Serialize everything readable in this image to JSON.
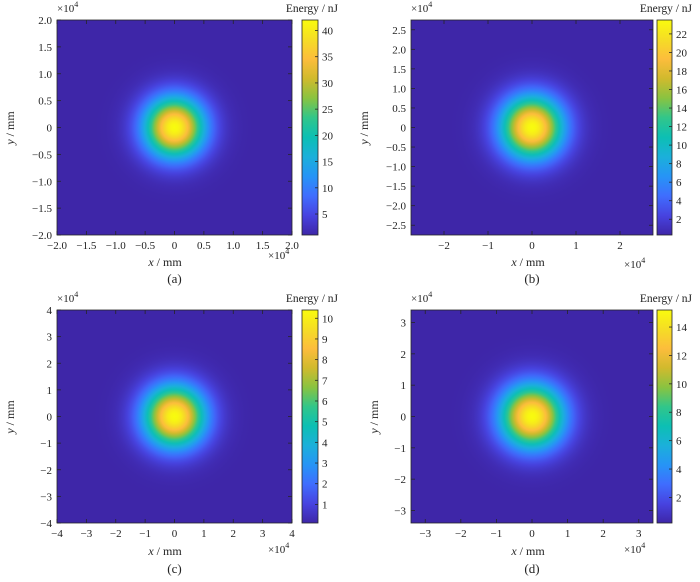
{
  "colormap": [
    "#3e26a8",
    "#4743e0",
    "#3f6dfe",
    "#2694f6",
    "#1bb0da",
    "#0cbfb4",
    "#31c68a",
    "#89c341",
    "#d0ba2d",
    "#fcbd3c",
    "#f5dd25",
    "#f9fb0e"
  ],
  "axis_color": "#262626",
  "chart_data": [
    {
      "type": "heatmap",
      "caption": "(a)",
      "xlabel": {
        "var": "x",
        "unit": " / mm"
      },
      "ylabel": {
        "var": "y",
        "unit": " / mm"
      },
      "colorbar_title": "Energy / nJ",
      "exponent": "4",
      "xlim": [
        -2.0,
        2.0
      ],
      "ylim": [
        -2.0,
        2.0
      ],
      "xticks": [
        -2.0,
        -1.5,
        -1.0,
        -0.5,
        0.0,
        0.5,
        1.0,
        1.5,
        2.0
      ],
      "xtick_labels": [
        "-2.0",
        "-1.5",
        "-1.0",
        "-0.5",
        "0",
        "0.5",
        "1.0",
        "1.5",
        "2.0"
      ],
      "yticks": [
        2.0,
        1.5,
        1.0,
        0.5,
        0.0,
        -0.5,
        -1.0,
        -1.5,
        -2.0
      ],
      "ytick_labels": [
        "2.0",
        "1.5",
        "1.0",
        "0.5",
        "0",
        "-0.5",
        "-1.0",
        "-1.5",
        "-2.0"
      ],
      "clim": [
        1,
        42
      ],
      "cticks": [
        5,
        10,
        15,
        20,
        25,
        30,
        35,
        40
      ],
      "ctick_labels": [
        "5",
        "10",
        "15",
        "20",
        "25",
        "30",
        "35",
        "40"
      ],
      "peak_energy": 42,
      "center": [
        0,
        0
      ],
      "beam_radius": 0.45
    },
    {
      "type": "heatmap",
      "caption": "(b)",
      "xlabel": {
        "var": "x",
        "unit": " / mm"
      },
      "ylabel": {
        "var": "y",
        "unit": " / mm"
      },
      "colorbar_title": "Energy / nJ",
      "exponent": "4",
      "xlim": [
        -2.75,
        2.75
      ],
      "ylim": [
        -2.75,
        2.75
      ],
      "xticks": [
        -2,
        -1,
        0,
        1,
        2
      ],
      "xtick_labels": [
        "-2",
        "-1",
        "0",
        "1",
        "2"
      ],
      "yticks": [
        2.5,
        2.0,
        1.5,
        1.0,
        0.5,
        0.0,
        -0.5,
        -1.0,
        -1.5,
        -2.0,
        -2.5
      ],
      "ytick_labels": [
        "2.5",
        "2.0",
        "1.5",
        "1.0",
        "0.5",
        "0",
        "-0.5",
        "-1.0",
        "-1.5",
        "-2.0",
        "-2.5"
      ],
      "clim": [
        0.3,
        23.5
      ],
      "cticks": [
        2,
        4,
        6,
        8,
        10,
        12,
        14,
        16,
        18,
        20,
        22
      ],
      "ctick_labels": [
        "2",
        "4",
        "6",
        "8",
        "10",
        "12",
        "14",
        "16",
        "18",
        "20",
        "22"
      ],
      "peak_energy": 23.5,
      "center": [
        0,
        0
      ],
      "beam_radius": 0.62
    },
    {
      "type": "heatmap",
      "caption": "(c)",
      "xlabel": {
        "var": "x",
        "unit": " / mm"
      },
      "ylabel": {
        "var": "y",
        "unit": " / mm"
      },
      "colorbar_title": "Energy / nJ",
      "exponent": "4",
      "xlim": [
        -4,
        4
      ],
      "ylim": [
        -4,
        4
      ],
      "xticks": [
        -4,
        -3,
        -2,
        -1,
        0,
        1,
        2,
        3,
        4
      ],
      "xtick_labels": [
        "-4",
        "-3",
        "-2",
        "-1",
        "0",
        "1",
        "2",
        "3",
        "4"
      ],
      "yticks": [
        4,
        3,
        2,
        1,
        0,
        -1,
        -2,
        -3,
        -4
      ],
      "ytick_labels": [
        "4",
        "3",
        "2",
        "1",
        "0",
        "-1",
        "-2",
        "-3",
        "-4"
      ],
      "clim": [
        0.1,
        10.4
      ],
      "cticks": [
        1,
        2,
        3,
        4,
        5,
        6,
        7,
        8,
        9,
        10
      ],
      "ctick_labels": [
        "1",
        "2",
        "3",
        "4",
        "5",
        "6",
        "7",
        "8",
        "9",
        "10"
      ],
      "peak_energy": 10.4,
      "center": [
        0,
        0
      ],
      "beam_radius": 0.92
    },
    {
      "type": "heatmap",
      "caption": "(d)",
      "xlabel": {
        "var": "x",
        "unit": " / mm"
      },
      "ylabel": {
        "var": "y",
        "unit": " / mm"
      },
      "colorbar_title": "Energy / nJ",
      "exponent": "4",
      "xlim": [
        -3.4,
        3.4
      ],
      "ylim": [
        -3.4,
        3.4
      ],
      "xticks": [
        -3,
        -2,
        -1,
        0,
        1,
        2,
        3
      ],
      "xtick_labels": [
        "-3",
        "-2",
        "-1",
        "0",
        "1",
        "2",
        "3"
      ],
      "yticks": [
        3,
        2,
        1,
        0,
        -1,
        -2,
        -3
      ],
      "ytick_labels": [
        "3",
        "2",
        "1",
        "0",
        "-1",
        "-2",
        "-3"
      ],
      "clim": [
        0.2,
        15.2
      ],
      "cticks": [
        2,
        4,
        6,
        8,
        10,
        12,
        14
      ],
      "ctick_labels": [
        "2",
        "4",
        "6",
        "8",
        "10",
        "12",
        "14"
      ],
      "peak_energy": 15.2,
      "center": [
        0,
        0
      ],
      "beam_radius": 0.78
    }
  ]
}
